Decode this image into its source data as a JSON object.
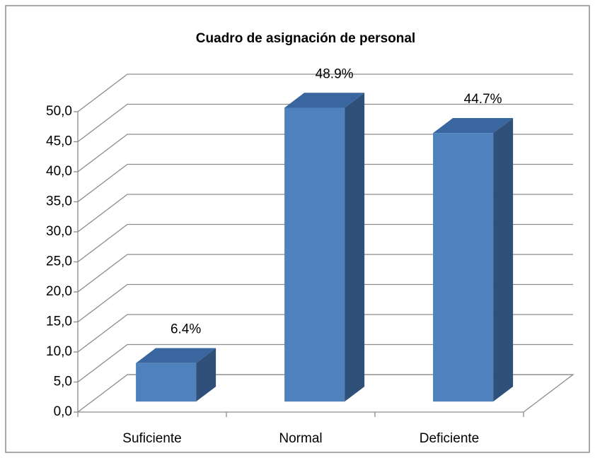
{
  "chart_data": {
    "type": "bar3d",
    "title": "Cuadro de asignación de personal",
    "categories": [
      "Suficiente",
      "Normal",
      "Deficiente"
    ],
    "values": [
      6.4,
      48.9,
      44.7
    ],
    "value_labels": [
      "6.4%",
      "48.9%",
      "44.7%"
    ],
    "color": "#4f81bd",
    "ylim": [
      0,
      50
    ],
    "yticks": [
      {
        "value": 0,
        "label": "0,0"
      },
      {
        "value": 5,
        "label": "5,0"
      },
      {
        "value": 10,
        "label": "10,0"
      },
      {
        "value": 15,
        "label": "15,0"
      },
      {
        "value": 20,
        "label": "20,0"
      },
      {
        "value": 25,
        "label": "25,0"
      },
      {
        "value": 30,
        "label": "30,0"
      },
      {
        "value": 35,
        "label": "35,0"
      },
      {
        "value": 40,
        "label": "40,0"
      },
      {
        "value": 45,
        "label": "45,0"
      },
      {
        "value": 50,
        "label": "50,0"
      }
    ],
    "grid": true
  }
}
